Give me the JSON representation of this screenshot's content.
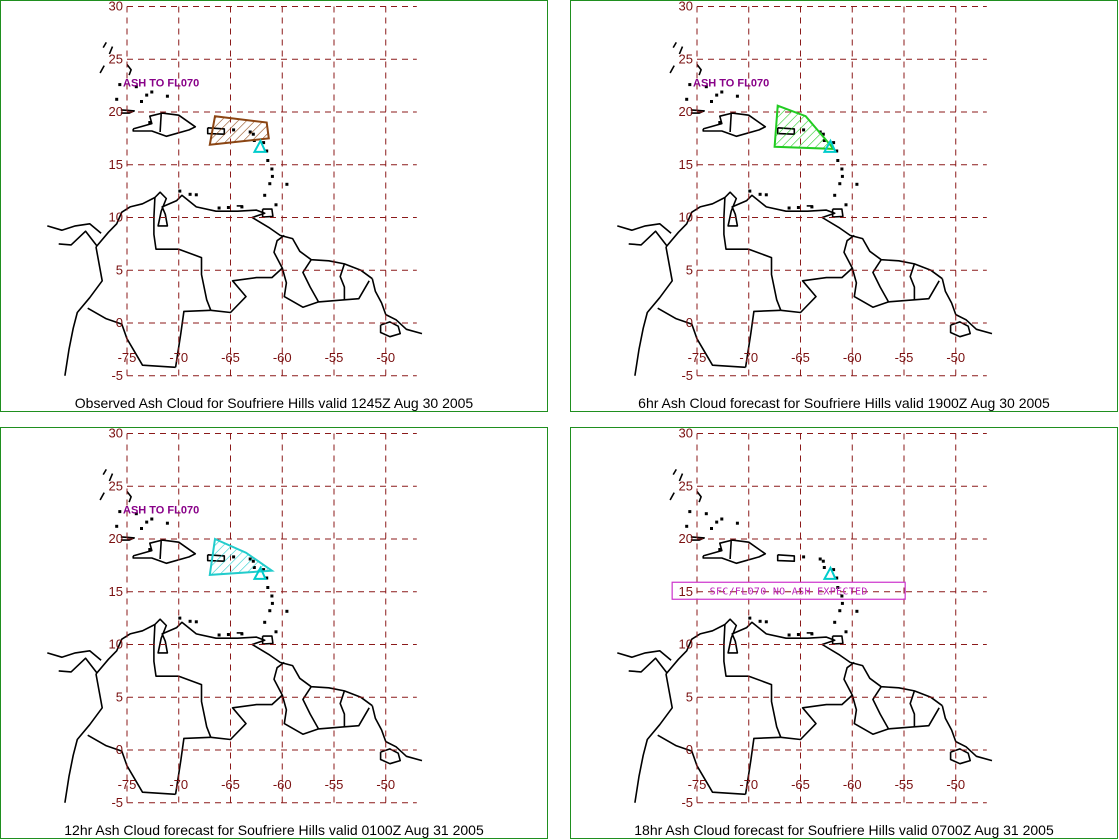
{
  "colors": {
    "frame": "#1f8f1f",
    "grid": "#8b1a1a",
    "land": "#000000",
    "tick_label": "#7a1010",
    "vent_marker": "#00cccc"
  },
  "panels": [
    {
      "caption": "Observed Ash Cloud for Soufriere  Hills valid 1245Z Aug 30 2005",
      "label": "ASH TO FL070",
      "cloud": {
        "color": "#8b4513",
        "lonlat": [
          [
            -66.5,
            19.6
          ],
          [
            -61.5,
            19.0
          ],
          [
            -61.3,
            17.5
          ],
          [
            -67.0,
            16.9
          ]
        ]
      },
      "no_ash_box": null,
      "lat_ticks": [
        "30",
        "25",
        "20",
        "15",
        "10",
        "5",
        "0",
        "-5"
      ],
      "lon_ticks": [
        "-75",
        "-70",
        "-65",
        "-60",
        "-55",
        "-50"
      ]
    },
    {
      "caption": "6hr Ash Cloud forecast for Soufriere  Hills valid 1900Z Aug 30 2005",
      "label": "ASH TO FL070",
      "cloud": {
        "color": "#22cc22",
        "lonlat": [
          [
            -67.2,
            20.6
          ],
          [
            -64.5,
            19.6
          ],
          [
            -61.8,
            16.5
          ],
          [
            -67.5,
            16.7
          ]
        ]
      },
      "no_ash_box": null,
      "lat_ticks": [
        "30",
        "25",
        "20",
        "15",
        "10",
        "5",
        "0",
        "-5"
      ],
      "lon_ticks": [
        "-75",
        "-70",
        "-65",
        "-60",
        "-55",
        "-50"
      ]
    },
    {
      "caption": "12hr Ash Cloud forecast for Soufriere  Hills valid 0100Z Aug 31 2005",
      "label": "ASH TO FL070",
      "cloud": {
        "color": "#22cccc",
        "lonlat": [
          [
            -66.5,
            20.0
          ],
          [
            -63.5,
            18.7
          ],
          [
            -61.0,
            17.0
          ],
          [
            -67.0,
            16.6
          ]
        ]
      },
      "no_ash_box": null,
      "lat_ticks": [
        "30",
        "25",
        "20",
        "15",
        "10",
        "5",
        "0",
        "-5"
      ],
      "lon_ticks": [
        "-75",
        "-70",
        "-65",
        "-60",
        "-55",
        "-50"
      ]
    },
    {
      "caption": "18hr Ash Cloud forecast for Soufriere  Hills valid 0700Z Aug 31 2005",
      "label": "",
      "cloud": null,
      "no_ash_box": {
        "text": "SFC/FL070  NO  ASH  EXPECTED",
        "color": "#cc33cc"
      },
      "lat_ticks": [
        "30",
        "25",
        "20",
        "15",
        "10",
        "5",
        "0",
        "-5"
      ],
      "lon_ticks": [
        "-75",
        "-70",
        "-65",
        "-60",
        "-55",
        "-50"
      ]
    }
  ]
}
